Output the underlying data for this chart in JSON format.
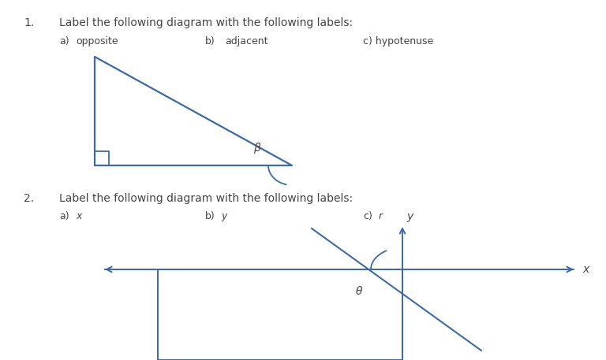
{
  "bg_color": "#ffffff",
  "line_color": "#3a6aaa",
  "text_color": "#444444",
  "q1_text": "1.",
  "q1_label": "Label the following diagram with the following labels:",
  "q1_a": "a)   opposite",
  "q1_b": "b)    adjacent",
  "q1_c": "c) hypotenuse",
  "q2_text": "2.",
  "q2_label": "Label the following diagram with the following labels:",
  "q2_a": "a)   x",
  "q2_b": "b)   y",
  "q2_c": "c)   r",
  "beta_label": "β",
  "theta_label": "θ",
  "font_size_main": 10,
  "font_size_label": 9,
  "font_size_greek": 9
}
